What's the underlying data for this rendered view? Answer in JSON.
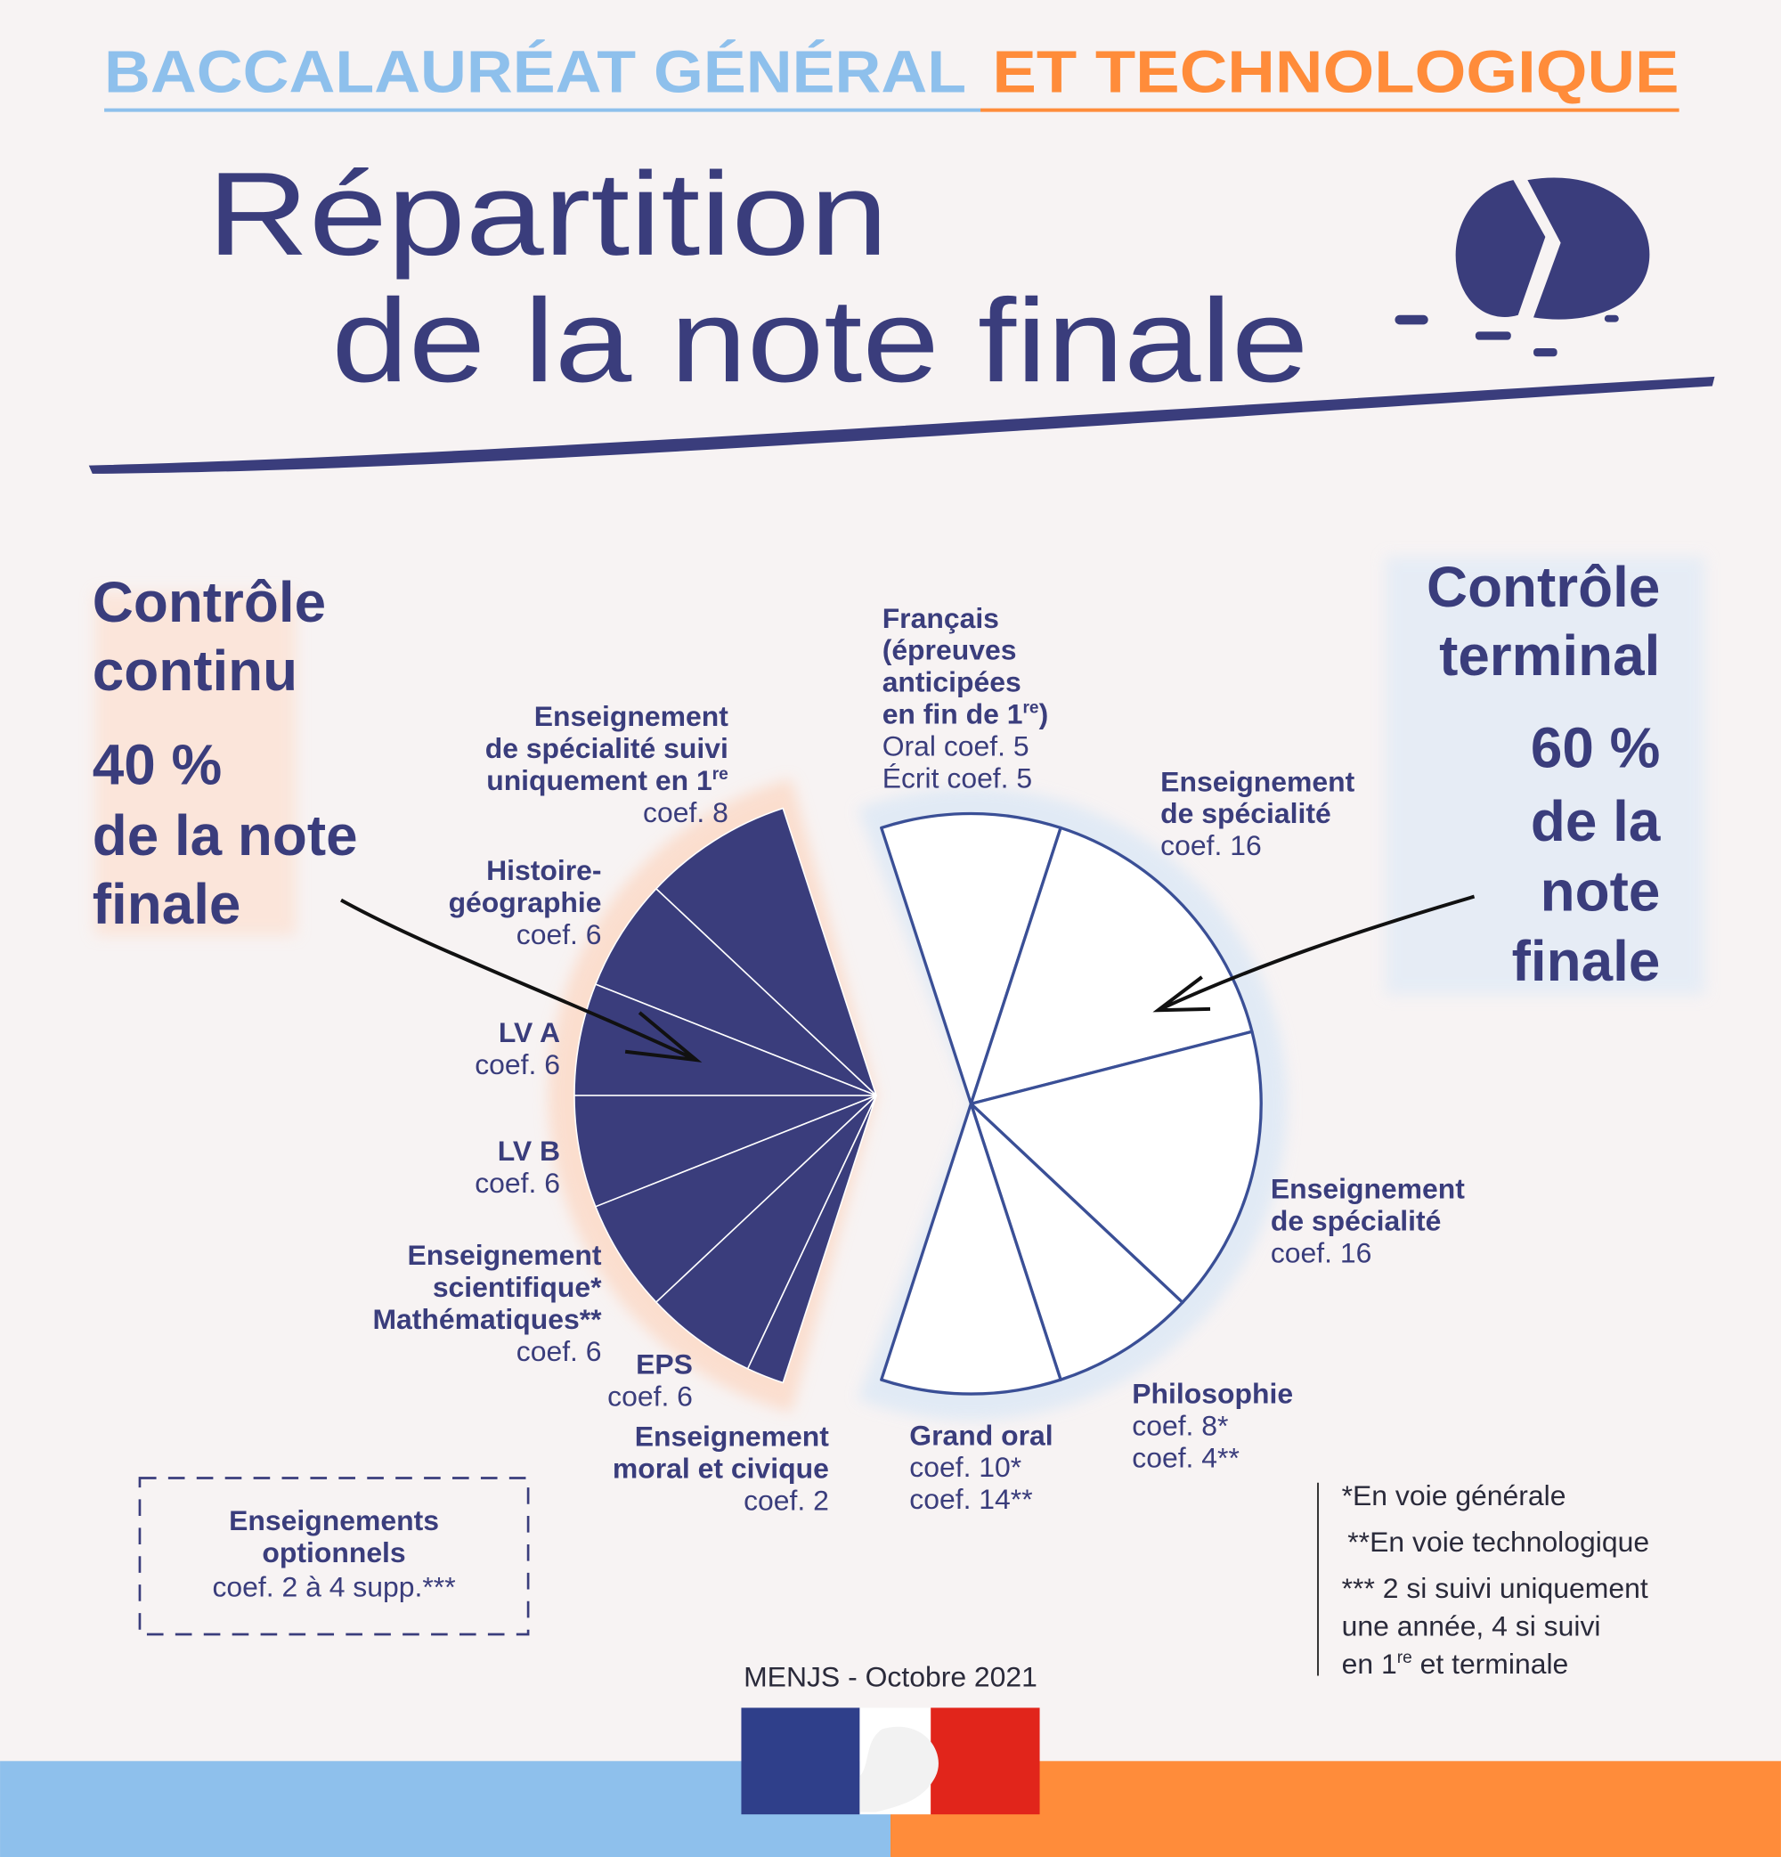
{
  "header": {
    "part1": "BACCALAURÉAT GÉNÉRAL",
    "part2": "ET TECHNOLOGIQUE"
  },
  "title": [
    "Répartition",
    "de la note finale"
  ],
  "left_panel": {
    "heading": [
      "Contrôle",
      "continu"
    ],
    "share": "40 %",
    "tail": [
      "de la note",
      "finale"
    ]
  },
  "right_panel": {
    "heading": [
      "Contrôle",
      "terminal"
    ],
    "share": "60 %",
    "tail": [
      "de la",
      "note",
      "finale"
    ]
  },
  "chart_data": {
    "type": "pie",
    "groups": [
      {
        "color": "#3a3d7c",
        "slices": [
          {
            "name": [
              "Enseignement",
              "de spécialité suivi",
              [
                "uniquement en 1",
                "re"
              ]
            ],
            "values": [
              8
            ],
            "labels": [
              "coef. 8"
            ]
          },
          {
            "name": [
              "Histoire-",
              "géographie"
            ],
            "values": [
              6
            ],
            "labels": [
              "coef. 6"
            ]
          },
          {
            "name": [
              "LV A"
            ],
            "values": [
              6
            ],
            "labels": [
              "coef. 6"
            ]
          },
          {
            "name": [
              "LV B"
            ],
            "values": [
              6
            ],
            "labels": [
              "coef. 6"
            ]
          },
          {
            "name": [
              "Enseignement",
              "scientifique*",
              "Mathématiques**"
            ],
            "values": [
              6
            ],
            "labels": [
              "coef. 6"
            ]
          },
          {
            "name": [
              "EPS"
            ],
            "values": [
              6
            ],
            "labels": [
              "coef. 6"
            ]
          },
          {
            "name": [
              "Enseignement",
              "moral et civique"
            ],
            "values": [
              2
            ],
            "labels": [
              "coef. 2"
            ]
          }
        ]
      },
      {
        "color": "#ffffff",
        "slices": [
          {
            "name": [
              "Français",
              "(épreuves",
              "anticipées",
              [
                "en fin de 1",
                "re",
                ")"
              ]
            ],
            "values": [
              5,
              5
            ],
            "labels": [
              "Oral coef. 5",
              "Écrit coef. 5"
            ]
          },
          {
            "name": [
              "Enseignement",
              "de spécialité"
            ],
            "values": [
              16
            ],
            "labels": [
              "coef. 16"
            ]
          },
          {
            "name": [
              "Enseignement",
              "de spécialité"
            ],
            "values": [
              16
            ],
            "labels": [
              "coef. 16"
            ]
          },
          {
            "name": [
              "Philosophie"
            ],
            "values": [
              8
            ],
            "labels": [
              "coef. 8*",
              "coef. 4**"
            ]
          },
          {
            "name": [
              "Grand oral"
            ],
            "values": [
              10
            ],
            "labels": [
              "coef. 10*",
              "coef. 14**"
            ]
          }
        ]
      }
    ]
  },
  "options_box": {
    "title": [
      "Enseignements",
      "optionnels"
    ],
    "detail": "coef. 2 à 4 supp.***"
  },
  "notes": [
    "*En voie générale",
    "**En voie technologique",
    "*** 2 si suivi uniquement",
    "une année, 4 si suivi",
    [
      "en 1",
      "re",
      " et terminale"
    ]
  ],
  "source": "MENJS - Octobre 2021"
}
